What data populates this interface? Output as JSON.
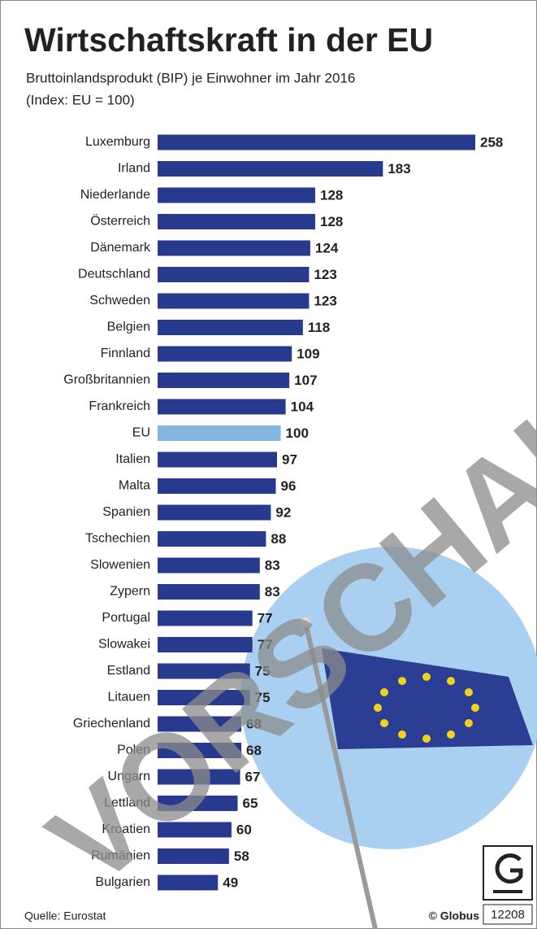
{
  "chart_data": {
    "type": "bar",
    "orientation": "horizontal",
    "title": "Wirtschaftskraft in der EU",
    "subtitle": "Bruttoinlandsprodukt (BIP) je Einwohner im Jahr 2016",
    "subtitle2": "(Index: EU = 100)",
    "categories": [
      "Luxemburg",
      "Irland",
      "Niederlande",
      "Österreich",
      "Dänemark",
      "Deutschland",
      "Schweden",
      "Belgien",
      "Finnland",
      "Großbritannien",
      "Frankreich",
      "EU",
      "Italien",
      "Malta",
      "Spanien",
      "Tschechien",
      "Slowenien",
      "Zypern",
      "Portugal",
      "Slowakei",
      "Estland",
      "Litauen",
      "Griechenland",
      "Polen",
      "Ungarn",
      "Lettland",
      "Kroatien",
      "Rumänien",
      "Bulgarien"
    ],
    "values": [
      258,
      183,
      128,
      128,
      124,
      123,
      123,
      118,
      109,
      107,
      104,
      100,
      97,
      96,
      92,
      88,
      83,
      83,
      77,
      77,
      75,
      75,
      68,
      68,
      67,
      65,
      60,
      58,
      49
    ],
    "colors": [
      "#283a8e",
      "#283a8e",
      "#283a8e",
      "#283a8e",
      "#283a8e",
      "#283a8e",
      "#283a8e",
      "#283a8e",
      "#283a8e",
      "#283a8e",
      "#283a8e",
      "#86b4e2",
      "#283a8e",
      "#283a8e",
      "#283a8e",
      "#283a8e",
      "#283a8e",
      "#283a8e",
      "#283a8e",
      "#283a8e",
      "#283a8e",
      "#283a8e",
      "#283a8e",
      "#283a8e",
      "#283a8e",
      "#283a8e",
      "#283a8e",
      "#283a8e",
      "#283a8e"
    ],
    "xlim": [
      0,
      258
    ],
    "source": "Quelle: Eurostat",
    "credit": "© Globus",
    "graphic_number": "12208",
    "watermark": "VORSCHAU"
  }
}
